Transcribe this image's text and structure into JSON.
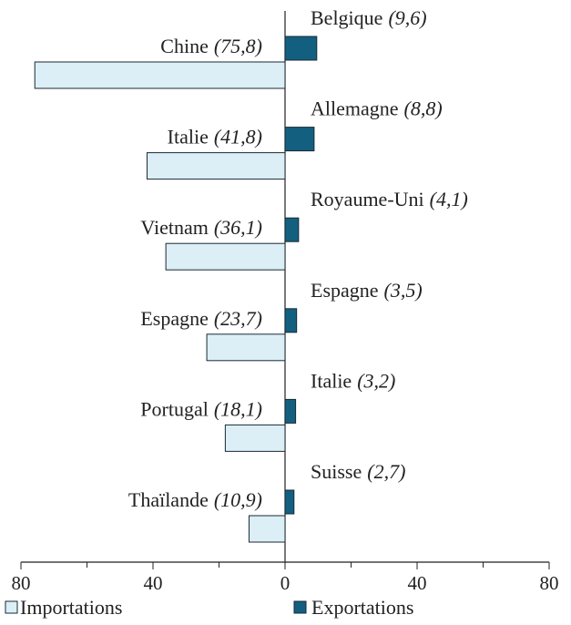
{
  "chart_data": {
    "type": "diverging-bar",
    "series": [
      {
        "name": "Importations",
        "color": "#dceef6",
        "side": "left",
        "categories": [
          "Chine",
          "Italie",
          "Vietnam",
          "Espagne",
          "Portugal",
          "Thaïlande"
        ],
        "values": [
          75.8,
          41.8,
          36.1,
          23.7,
          18.1,
          10.9
        ],
        "value_labels": [
          "(75,8)",
          "(41,8)",
          "(36,1)",
          "(23,7)",
          "(18,1)",
          "(10,9)"
        ]
      },
      {
        "name": "Exportations",
        "color": "#135f80",
        "side": "right",
        "categories": [
          "Belgique",
          "Allemagne",
          "Royaume-Uni",
          "Espagne",
          "Italie",
          "Suisse"
        ],
        "values": [
          9.6,
          8.8,
          4.1,
          3.5,
          3.2,
          2.7
        ],
        "value_labels": [
          "(9,6)",
          "(8,8)",
          "(4,1)",
          "(3,5)",
          "(3,2)",
          "(2,7)"
        ]
      }
    ],
    "xlim": [
      -80,
      80
    ],
    "xticks": [
      {
        "value": -80,
        "label": "80"
      },
      {
        "value": -40,
        "label": "40"
      },
      0,
      40,
      80
    ],
    "minor_xticks": [
      -60,
      -20,
      20,
      60
    ]
  }
}
